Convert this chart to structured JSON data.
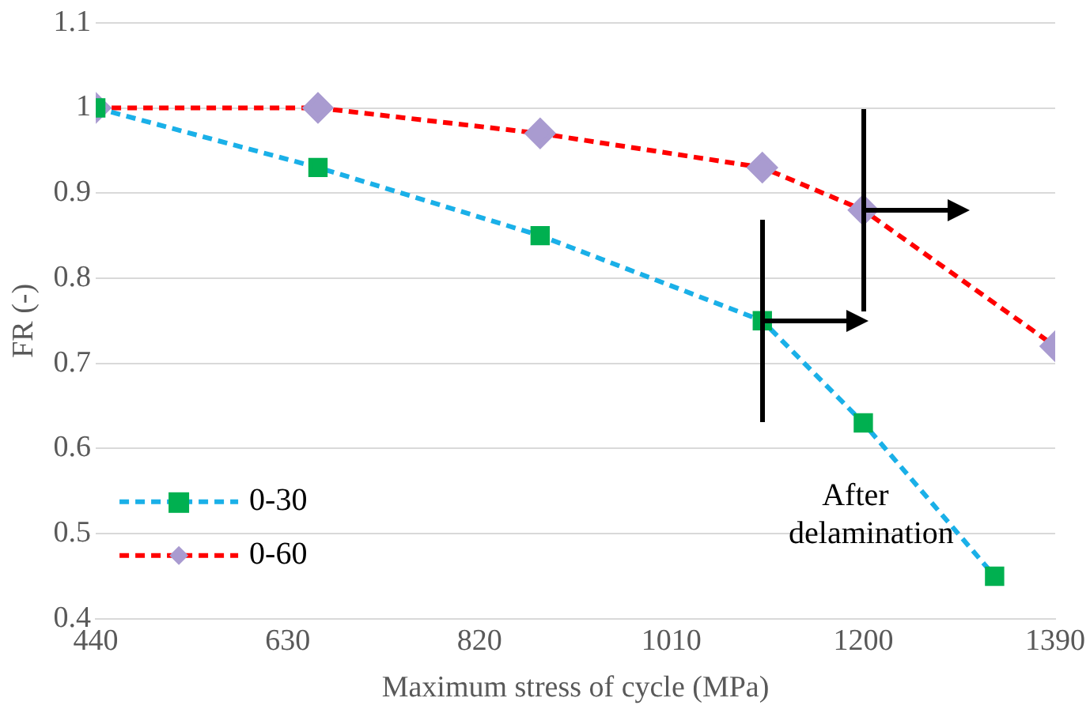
{
  "chart_data": {
    "type": "line",
    "xlabel": "Maximum stress of cycle (MPa)",
    "ylabel": "FR (-)",
    "xlim": [
      440,
      1390
    ],
    "xticks": [
      440,
      630,
      820,
      1010,
      1200,
      1390
    ],
    "ylim": [
      0.4,
      1.1
    ],
    "yticks": [
      0.4,
      0.5,
      0.6,
      0.7,
      0.8,
      0.9,
      1,
      1.1
    ],
    "grid": "y",
    "legend": "bottom left",
    "line_style": "dashed",
    "annotations": [
      "After delamination"
    ],
    "series": [
      {
        "name": "0-30",
        "color": "#1ab0e8",
        "colors": [
          "#00b050",
          "#00b050",
          "#00b050",
          "#00b050",
          "#00b050",
          "#00b050"
        ],
        "marker": "square",
        "x": [
          440,
          660,
          880,
          1100,
          1200,
          1330
        ],
        "values": [
          1,
          0.93,
          0.85,
          0.75,
          0.63,
          0.45
        ]
      },
      {
        "name": "0-60",
        "color": "#ff0000",
        "colors": [
          "#a99bd0",
          "#a99bd0",
          "#a99bd0",
          "#a99bd0",
          "#a99bd0",
          "#a99bd0"
        ],
        "marker": "diamond",
        "x": [
          440,
          660,
          880,
          1100,
          1200,
          1390
        ],
        "values": [
          1,
          1,
          0.97,
          0.93,
          0.88,
          0.72
        ]
      }
    ]
  }
}
